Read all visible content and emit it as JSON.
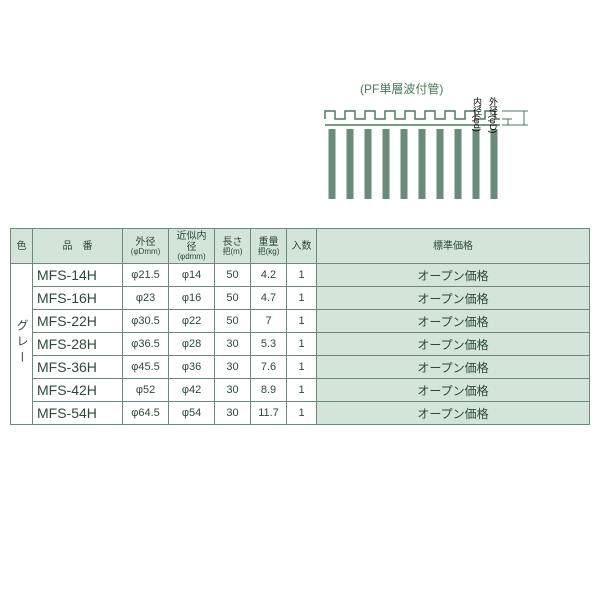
{
  "diagram": {
    "caption": "(PF単層波付管)",
    "inner_label": "内径(φd)",
    "outer_label": "外径(φD)",
    "tube_color": "#6a8a7a",
    "line_color": "#4a7a5a"
  },
  "table": {
    "header_bg": "#d4e4d8",
    "border_color": "#6a8a7a",
    "text_color": "#2a4a3a",
    "columns": {
      "color": "色",
      "part": "品　番",
      "outer_dia": "外径",
      "outer_dia_sub": "(φDmm)",
      "inner_dia": "近似内径",
      "inner_dia_sub": "(φdmm)",
      "length": "長さ",
      "length_sub": "把(m)",
      "weight": "重量",
      "weight_sub": "把(kg)",
      "qty": "入数",
      "price": "標準価格"
    },
    "color_label": "グレー",
    "price_text": "オープン価格",
    "rows": [
      {
        "part": "MFS-14H",
        "od": "φ21.5",
        "id": "φ14",
        "len": "50",
        "wt": "4.2",
        "qty": "1"
      },
      {
        "part": "MFS-16H",
        "od": "φ23",
        "id": "φ16",
        "len": "50",
        "wt": "4.7",
        "qty": "1"
      },
      {
        "part": "MFS-22H",
        "od": "φ30.5",
        "id": "φ22",
        "len": "50",
        "wt": "7",
        "qty": "1"
      },
      {
        "part": "MFS-28H",
        "od": "φ36.5",
        "id": "φ28",
        "len": "30",
        "wt": "5.3",
        "qty": "1"
      },
      {
        "part": "MFS-36H",
        "od": "φ45.5",
        "id": "φ36",
        "len": "30",
        "wt": "7.6",
        "qty": "1"
      },
      {
        "part": "MFS-42H",
        "od": "φ52",
        "id": "φ42",
        "len": "30",
        "wt": "8.9",
        "qty": "1"
      },
      {
        "part": "MFS-54H",
        "od": "φ64.5",
        "id": "φ54",
        "len": "30",
        "wt": "11.7",
        "qty": "1"
      }
    ]
  }
}
